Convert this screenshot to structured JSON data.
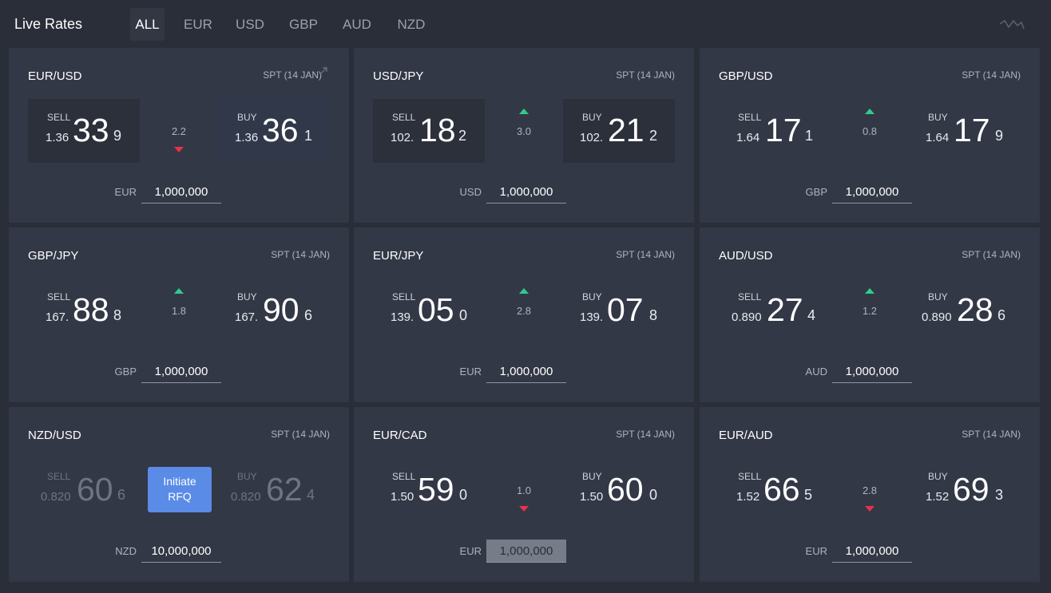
{
  "header": {
    "title": "Live Rates",
    "tabs": [
      {
        "label": "ALL",
        "active": true
      },
      {
        "label": "EUR",
        "active": false
      },
      {
        "label": "USD",
        "active": false
      },
      {
        "label": "GBP",
        "active": false
      },
      {
        "label": "AUD",
        "active": false
      },
      {
        "label": "NZD",
        "active": false
      }
    ],
    "chart_icon": "sparkline-icon"
  },
  "tiles": [
    {
      "pair": "EUR/USD",
      "spt": "SPT (14 JAN)",
      "sell": {
        "label": "SELL",
        "prefix": "1.36",
        "big": "33",
        "pip": "9"
      },
      "buy": {
        "label": "BUY",
        "prefix": "1.36",
        "big": "36",
        "pip": "1"
      },
      "spread": "2.2",
      "direction": "down",
      "notional_ccy": "EUR",
      "notional": "1,000,000"
    },
    {
      "pair": "USD/JPY",
      "spt": "SPT (14 JAN)",
      "sell": {
        "label": "SELL",
        "prefix": "102.",
        "big": "18",
        "pip": "2"
      },
      "buy": {
        "label": "BUY",
        "prefix": "102.",
        "big": "21",
        "pip": "2"
      },
      "spread": "3.0",
      "direction": "up",
      "notional_ccy": "USD",
      "notional": "1,000,000"
    },
    {
      "pair": "GBP/USD",
      "spt": "SPT (14 JAN)",
      "sell": {
        "label": "SELL",
        "prefix": "1.64",
        "big": "17",
        "pip": "1"
      },
      "buy": {
        "label": "BUY",
        "prefix": "1.64",
        "big": "17",
        "pip": "9"
      },
      "spread": "0.8",
      "direction": "up",
      "notional_ccy": "GBP",
      "notional": "1,000,000"
    },
    {
      "pair": "GBP/JPY",
      "spt": "SPT (14 JAN)",
      "sell": {
        "label": "SELL",
        "prefix": "167.",
        "big": "88",
        "pip": "8"
      },
      "buy": {
        "label": "BUY",
        "prefix": "167.",
        "big": "90",
        "pip": "6"
      },
      "spread": "1.8",
      "direction": "up",
      "notional_ccy": "GBP",
      "notional": "1,000,000"
    },
    {
      "pair": "EUR/JPY",
      "spt": "SPT (14 JAN)",
      "sell": {
        "label": "SELL",
        "prefix": "139.",
        "big": "05",
        "pip": "0"
      },
      "buy": {
        "label": "BUY",
        "prefix": "139.",
        "big": "07",
        "pip": "8"
      },
      "spread": "2.8",
      "direction": "up",
      "notional_ccy": "EUR",
      "notional": "1,000,000"
    },
    {
      "pair": "AUD/USD",
      "spt": "SPT (14 JAN)",
      "sell": {
        "label": "SELL",
        "prefix": "0.890",
        "big": "27",
        "pip": "4"
      },
      "buy": {
        "label": "BUY",
        "prefix": "0.890",
        "big": "28",
        "pip": "6"
      },
      "spread": "1.2",
      "direction": "up",
      "notional_ccy": "AUD",
      "notional": "1,000,000"
    },
    {
      "pair": "NZD/USD",
      "spt": "SPT (14 JAN)",
      "sell": {
        "label": "SELL",
        "prefix": "0.820",
        "big": "60",
        "pip": "6"
      },
      "buy": {
        "label": "BUY",
        "prefix": "0.820",
        "big": "62",
        "pip": "4"
      },
      "spread": "",
      "direction": "none",
      "rfq_label": "Initiate RFQ",
      "notional_ccy": "NZD",
      "notional": "10,000,000"
    },
    {
      "pair": "EUR/CAD",
      "spt": "SPT (14 JAN)",
      "sell": {
        "label": "SELL",
        "prefix": "1.50",
        "big": "59",
        "pip": "0"
      },
      "buy": {
        "label": "BUY",
        "prefix": "1.50",
        "big": "60",
        "pip": "0"
      },
      "spread": "1.0",
      "direction": "down",
      "notional_ccy": "EUR",
      "notional": "1,000,000"
    },
    {
      "pair": "EUR/AUD",
      "spt": "SPT (14 JAN)",
      "sell": {
        "label": "SELL",
        "prefix": "1.52",
        "big": "66",
        "pip": "5"
      },
      "buy": {
        "label": "BUY",
        "prefix": "1.52",
        "big": "69",
        "pip": "3"
      },
      "spread": "2.8",
      "direction": "down",
      "notional_ccy": "EUR",
      "notional": "1,000,000"
    }
  ],
  "colors": {
    "up": "#2ecc8a",
    "down": "#e8314a",
    "rfq": "#5a8be6",
    "background": "#2a2e38",
    "tile": "#333846"
  }
}
